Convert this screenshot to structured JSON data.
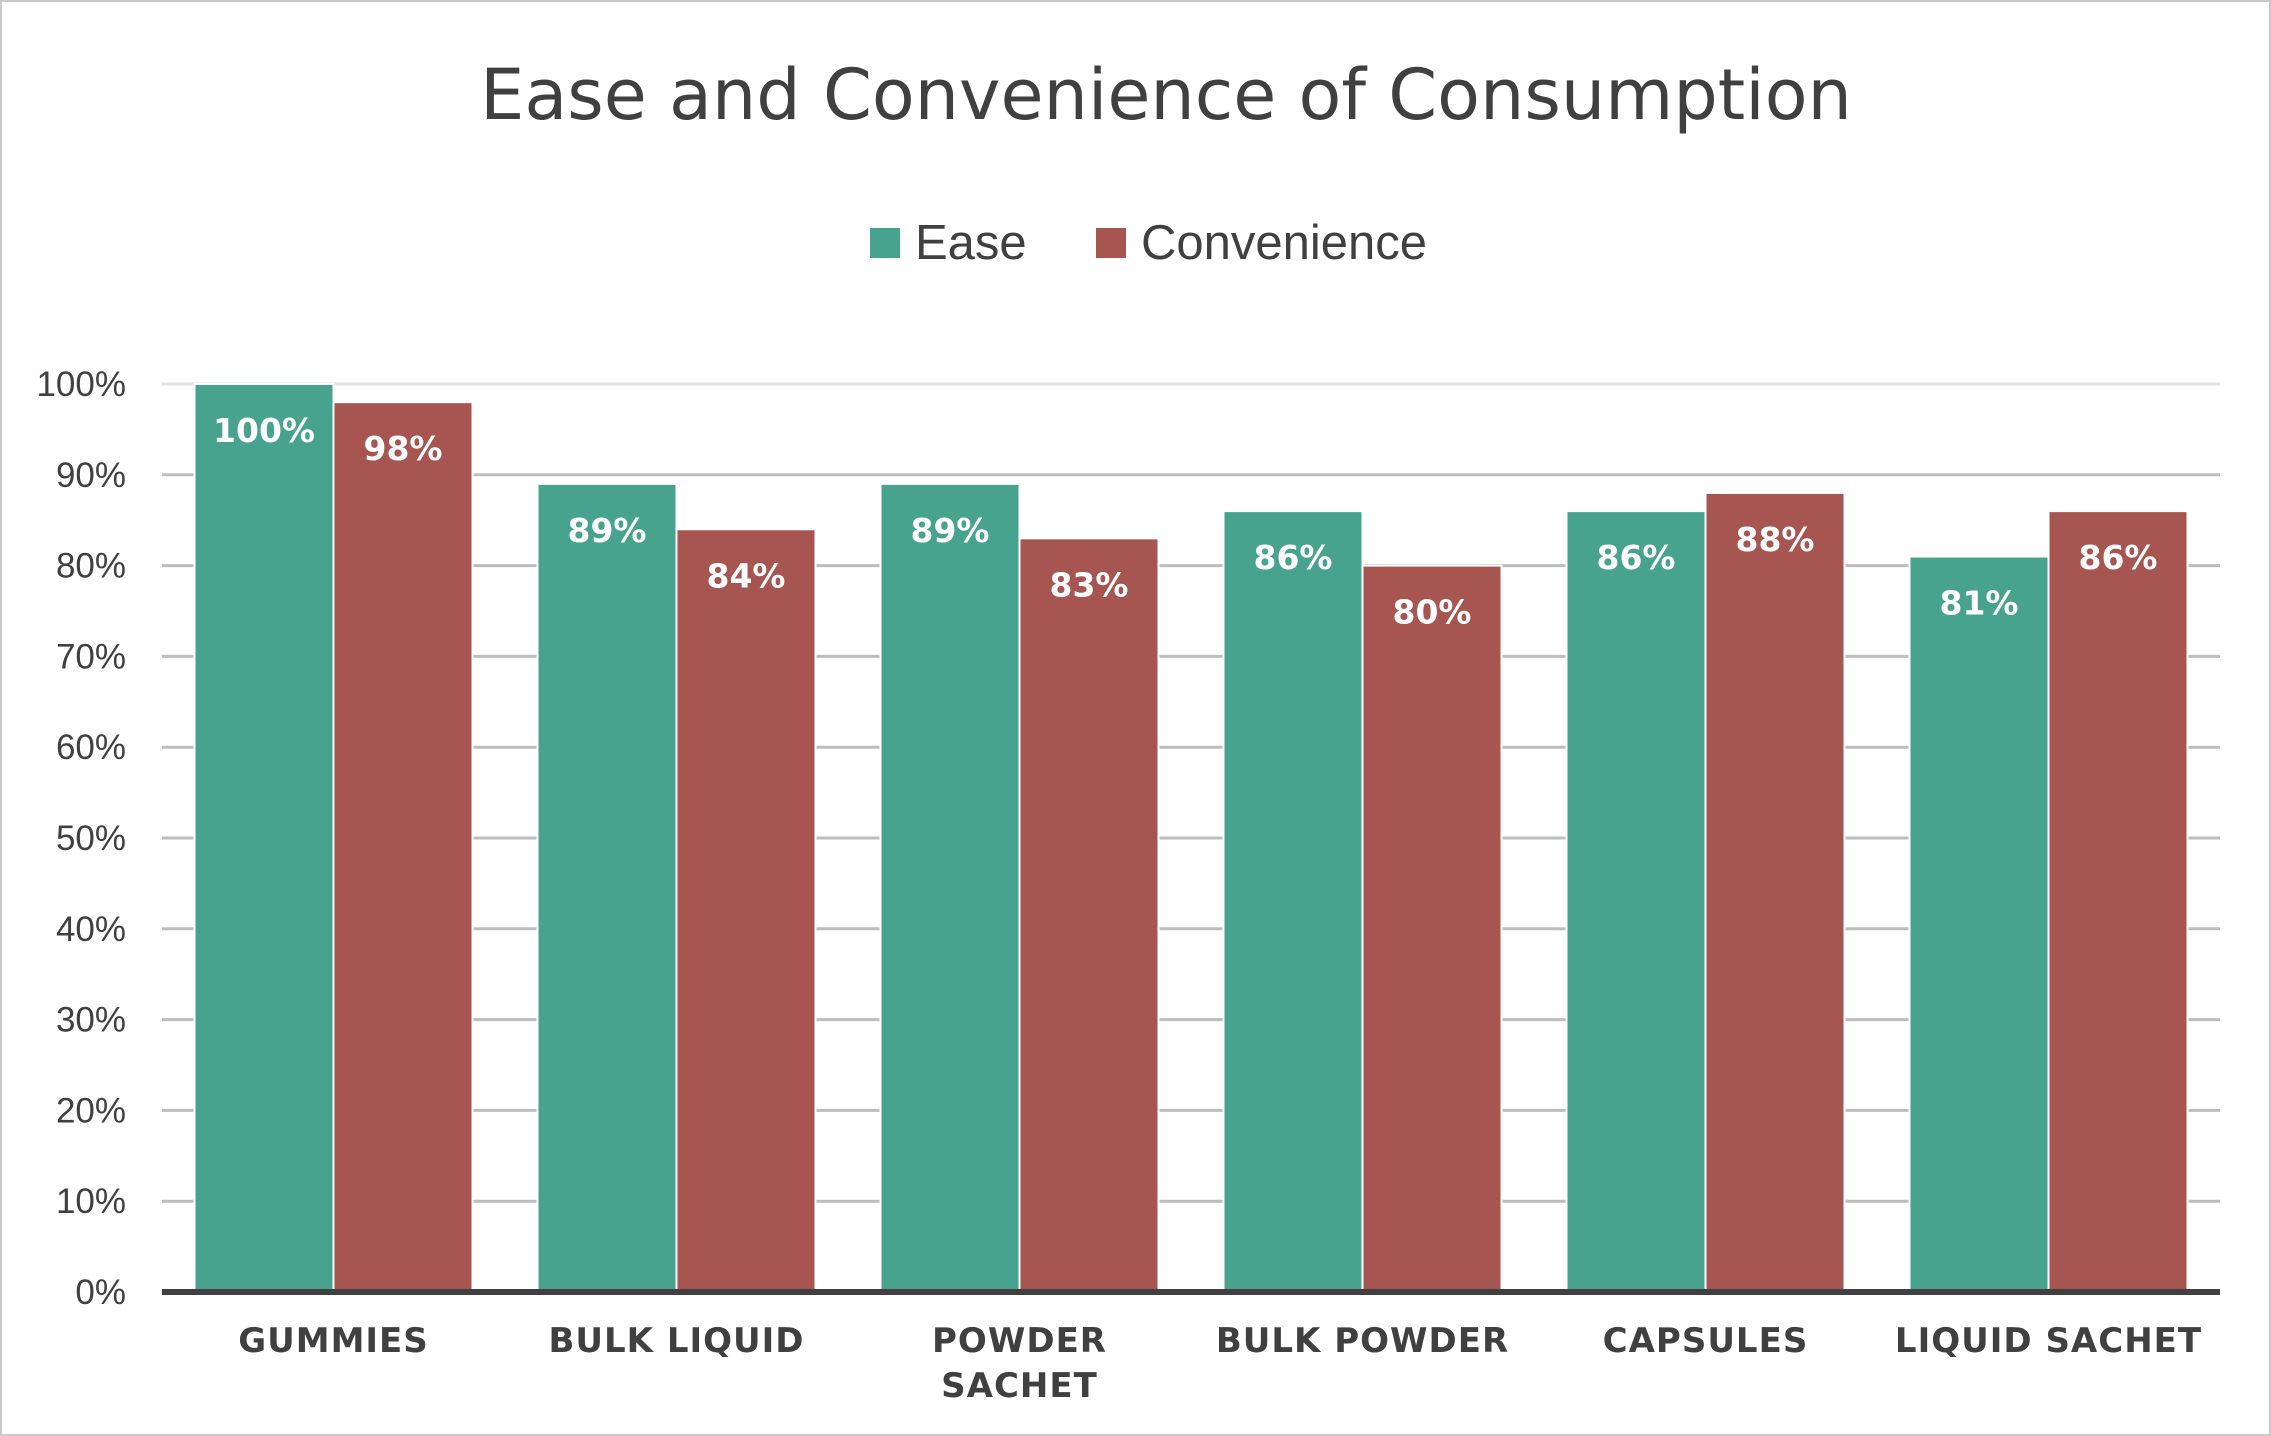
{
  "chart_data": {
    "type": "bar",
    "title": "Ease and Convenience of Consumption",
    "categories": [
      [
        "GUMMIES"
      ],
      [
        "BULK LIQUID"
      ],
      [
        "POWDER",
        "SACHET"
      ],
      [
        "BULK POWDER"
      ],
      [
        "CAPSULES"
      ],
      [
        "LIQUID SACHET"
      ]
    ],
    "series": [
      {
        "name": "Ease",
        "color": "#48A38E",
        "values": [
          100,
          89,
          89,
          86,
          86,
          81
        ],
        "labels": [
          "100%",
          "89%",
          "89%",
          "86%",
          "86%",
          "81%"
        ]
      },
      {
        "name": "Convenience",
        "color": "#A65550",
        "values": [
          98,
          84,
          83,
          80,
          88,
          86
        ],
        "labels": [
          "98%",
          "84%",
          "83%",
          "80%",
          "88%",
          "86%"
        ]
      }
    ],
    "ylim": [
      0,
      100
    ],
    "yticks": [
      0,
      10,
      20,
      30,
      40,
      50,
      60,
      70,
      80,
      90,
      100
    ],
    "ytick_labels": [
      "0%",
      "10%",
      "20%",
      "30%",
      "40%",
      "50%",
      "60%",
      "70%",
      "80%",
      "90%",
      "100%"
    ],
    "xlabel": "",
    "ylabel": "",
    "grid": true,
    "legend_position": "top-center"
  }
}
